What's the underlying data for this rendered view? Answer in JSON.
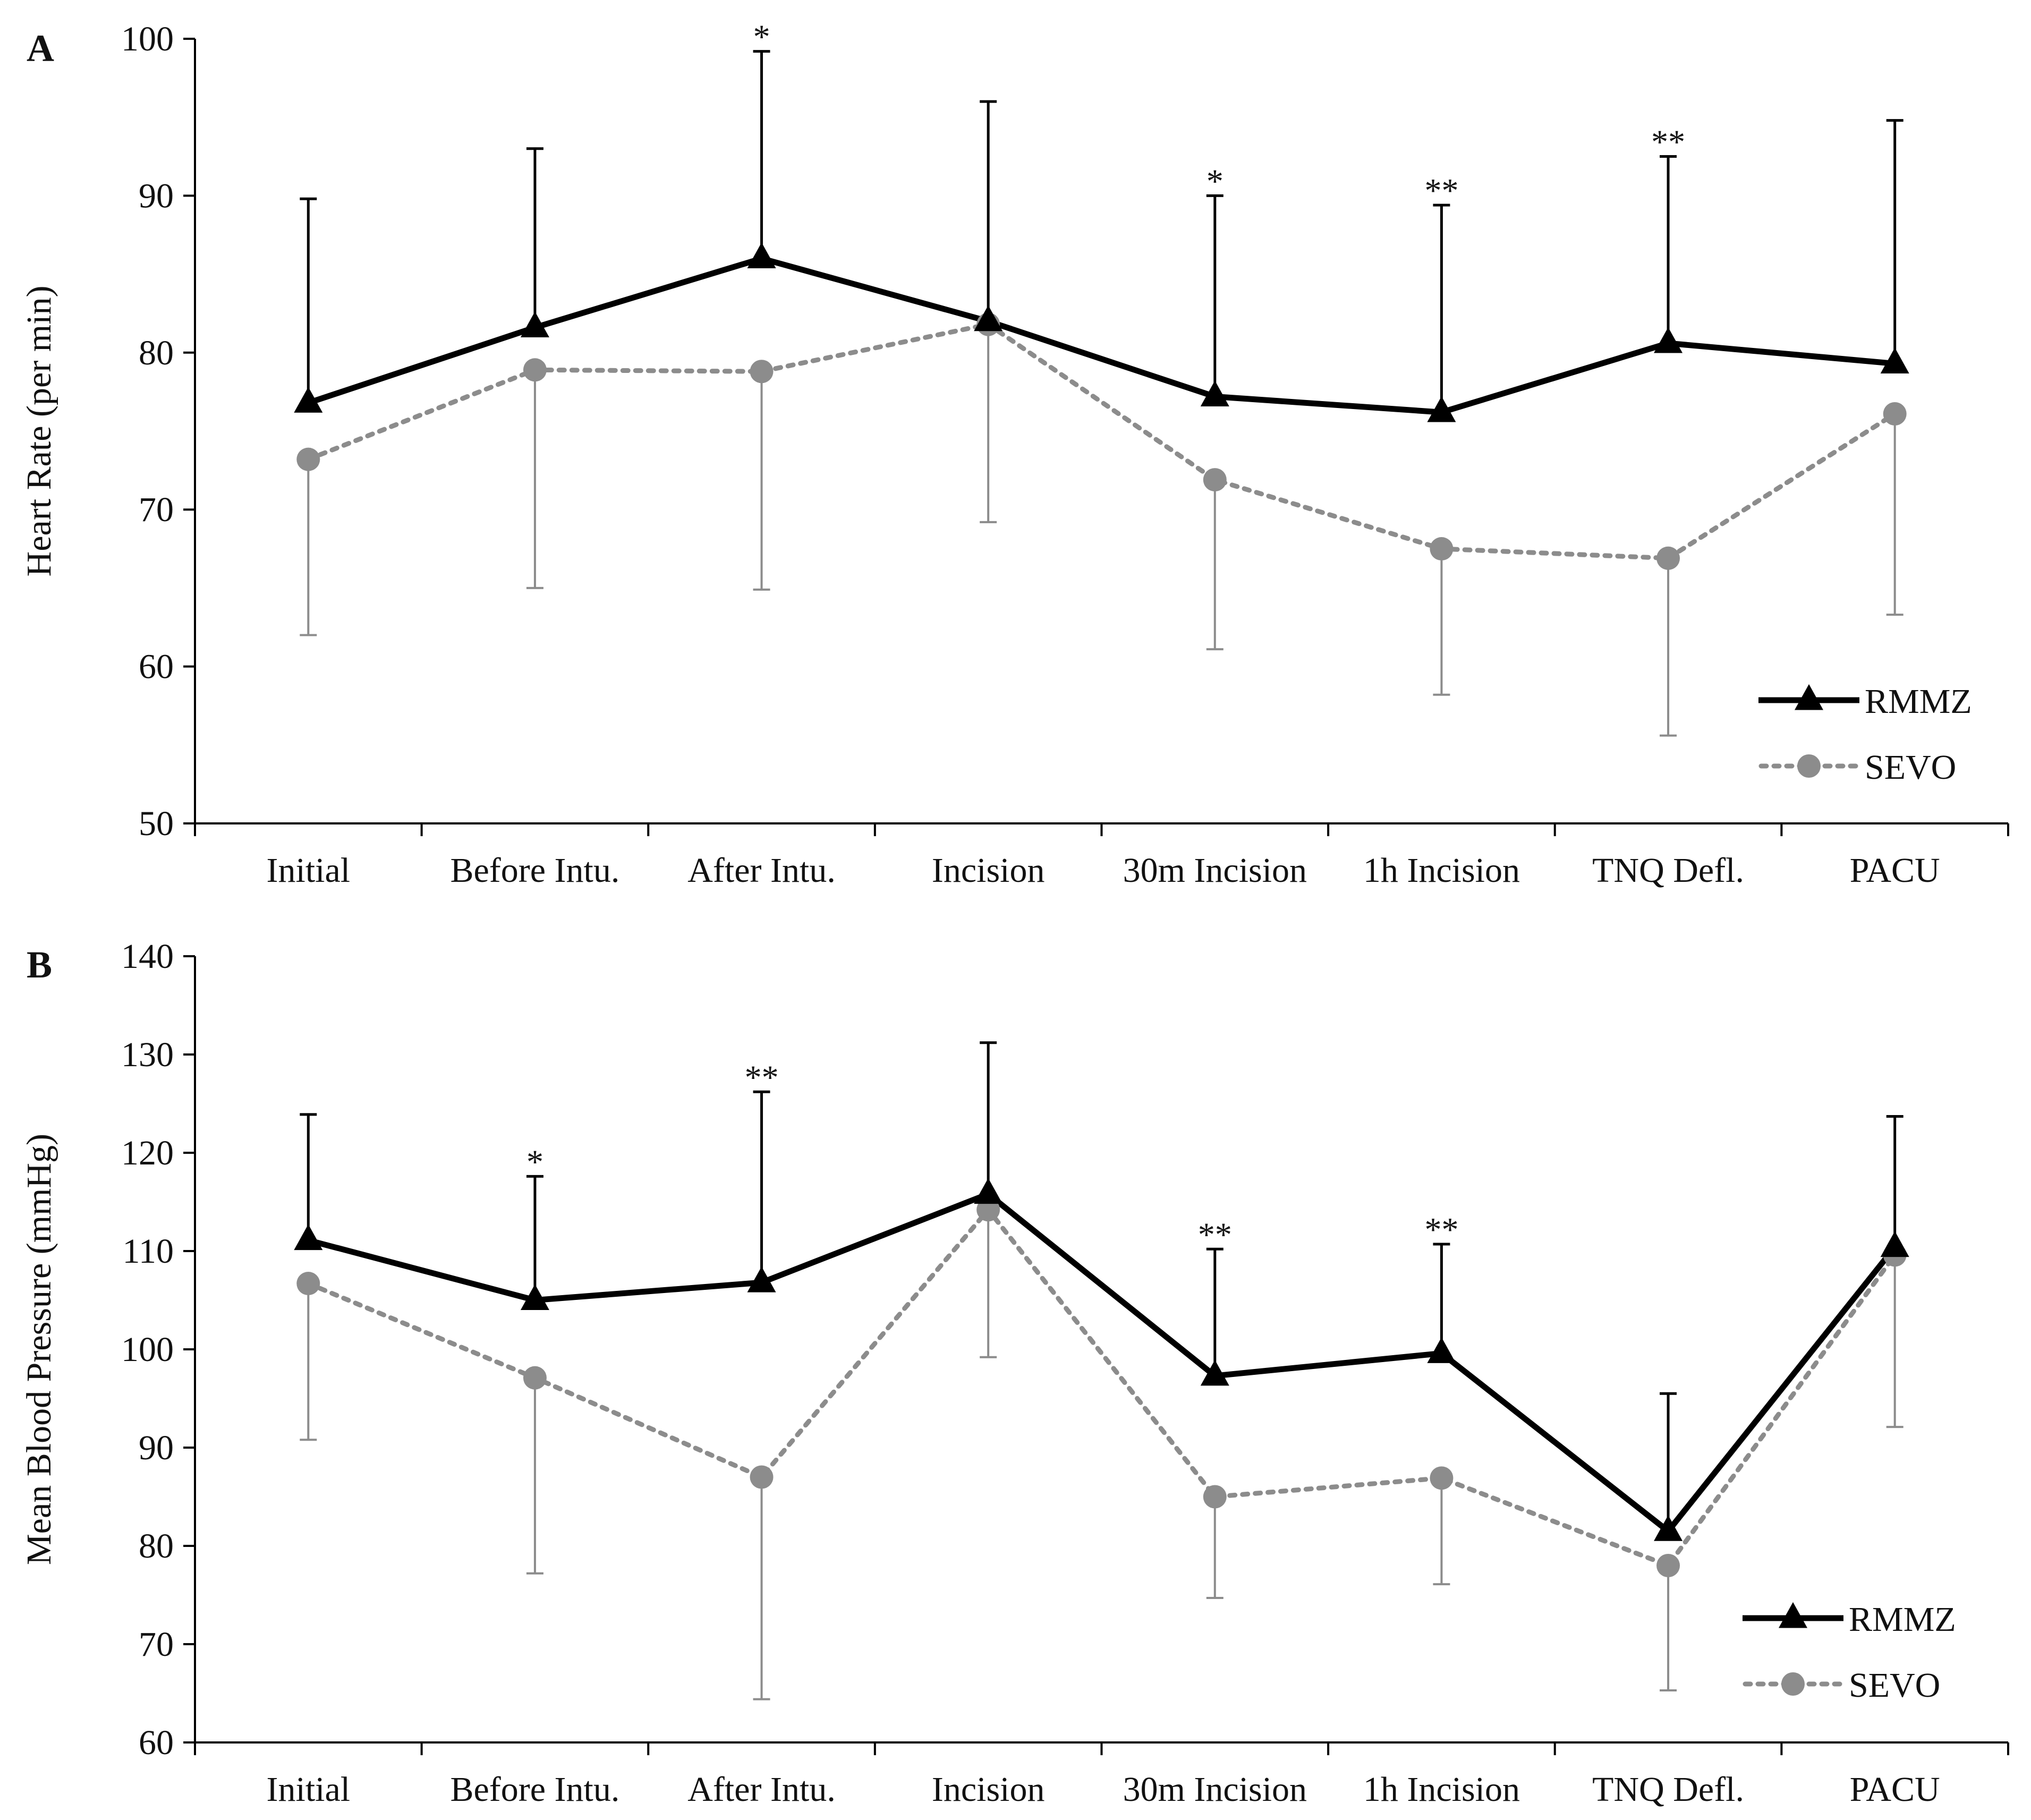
{
  "figure": {
    "panels": [
      "A",
      "B"
    ]
  },
  "chart_data": [
    {
      "panel": "A",
      "type": "line",
      "title": "",
      "xlabel": "",
      "ylabel": "Heart Rate (per min)",
      "ylim": [
        50,
        100
      ],
      "yticks": [
        50,
        60,
        70,
        80,
        90,
        100
      ],
      "categories": [
        "Initial",
        "Before Intu.",
        "After Intu.",
        "Incision",
        "30m Incision",
        "1h Incision",
        "TNQ Defl.",
        "PACU"
      ],
      "grid": false,
      "legend_position": "bottom-right",
      "series": [
        {
          "name": "RMMZ",
          "color": "#000000",
          "line_style": "solid",
          "marker": "triangle",
          "values": [
            76.8,
            81.6,
            86.0,
            82.0,
            77.2,
            76.2,
            80.6,
            79.3
          ],
          "error_upper": [
            89.8,
            93.0,
            99.2,
            96.0,
            90.0,
            89.4,
            92.5,
            94.8
          ]
        },
        {
          "name": "SEVO",
          "color": "#8c8c8c",
          "line_style": "dotted",
          "marker": "circle",
          "values": [
            73.2,
            78.9,
            78.8,
            81.8,
            71.9,
            67.5,
            66.9,
            76.1
          ],
          "error_lower": [
            62.0,
            65.0,
            64.9,
            69.2,
            61.1,
            58.2,
            55.6,
            63.3
          ]
        }
      ],
      "significance": [
        "",
        "",
        "*",
        "",
        "*",
        "**",
        "**",
        ""
      ]
    },
    {
      "panel": "B",
      "type": "line",
      "title": "",
      "xlabel": "",
      "ylabel": "Mean Blood Pressure (mmHg)",
      "ylim": [
        60,
        140
      ],
      "yticks": [
        60,
        70,
        80,
        90,
        100,
        110,
        120,
        130,
        140
      ],
      "categories": [
        "Initial",
        "Before Intu.",
        "After Intu.",
        "Incision",
        "30m Incision",
        "1h Incision",
        "TNQ Defl.",
        "PACU"
      ],
      "grid": false,
      "legend_position": "bottom-right",
      "series": [
        {
          "name": "RMMZ",
          "color": "#000000",
          "line_style": "solid",
          "marker": "triangle",
          "values": [
            111.1,
            105.0,
            106.8,
            115.8,
            97.3,
            99.6,
            81.5,
            110.4
          ],
          "error_upper": [
            123.9,
            117.6,
            126.2,
            131.2,
            110.2,
            110.7,
            95.5,
            123.7
          ]
        },
        {
          "name": "SEVO",
          "color": "#8c8c8c",
          "line_style": "dotted",
          "marker": "circle",
          "values": [
            106.7,
            97.1,
            87.0,
            114.2,
            85.0,
            86.9,
            78.0,
            109.6
          ],
          "error_lower": [
            90.8,
            77.2,
            64.4,
            99.2,
            74.7,
            76.1,
            65.3,
            92.1
          ]
        }
      ],
      "significance": [
        "",
        "*",
        "**",
        "",
        "**",
        "**",
        "",
        ""
      ]
    }
  ]
}
